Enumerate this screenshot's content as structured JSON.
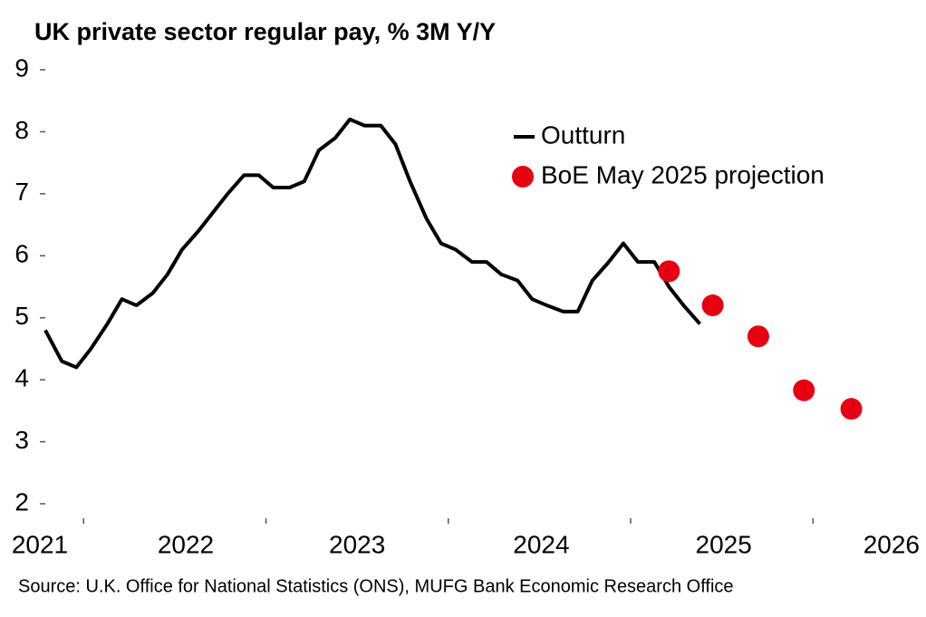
{
  "chart_data": {
    "type": "line",
    "title": "UK private sector regular pay, % 3M Y/Y",
    "source": "Source: U.K. Office for National Statistics (ONS), MUFG Bank Economic Research Office",
    "xlim": [
      2021.78,
      2026.56
    ],
    "xticks": [
      {
        "value": 2021.76,
        "label": "2021"
      },
      {
        "value": 2022.56,
        "label": "2022"
      },
      {
        "value": 2023.5,
        "label": "2023"
      },
      {
        "value": 2024.51,
        "label": "2024"
      },
      {
        "value": 2025.51,
        "label": "2025"
      },
      {
        "value": 2026.43,
        "label": "2026"
      }
    ],
    "xtick_marks": [
      2022,
      2023,
      2024,
      2025,
      2026
    ],
    "ylim": [
      2,
      9
    ],
    "yticks": [
      2,
      3,
      4,
      5,
      6,
      7,
      8,
      9
    ],
    "grid": false,
    "legend": "top-right",
    "series": [
      {
        "name": "Outturn",
        "type": "line",
        "color": "#000000",
        "x": [
          2021.79,
          2021.88,
          2021.96,
          2022.04,
          2022.13,
          2022.21,
          2022.29,
          2022.38,
          2022.46,
          2022.54,
          2022.63,
          2022.71,
          2022.79,
          2022.88,
          2022.96,
          2023.04,
          2023.13,
          2023.21,
          2023.29,
          2023.38,
          2023.46,
          2023.54,
          2023.63,
          2023.71,
          2023.79,
          2023.88,
          2023.96,
          2024.04,
          2024.13,
          2024.21,
          2024.29,
          2024.38,
          2024.46,
          2024.54,
          2024.63,
          2024.71,
          2024.79,
          2024.88,
          2024.96,
          2025.04,
          2025.13,
          2025.21,
          2025.29,
          2025.38
        ],
        "values": [
          4.8,
          4.3,
          4.2,
          4.5,
          4.9,
          5.3,
          5.2,
          5.4,
          5.7,
          6.1,
          6.4,
          6.7,
          7.0,
          7.3,
          7.3,
          7.1,
          7.1,
          7.2,
          7.7,
          7.9,
          8.2,
          8.1,
          8.1,
          7.8,
          7.2,
          6.6,
          6.2,
          6.1,
          5.9,
          5.9,
          5.7,
          5.6,
          5.3,
          5.2,
          5.1,
          5.1,
          5.6,
          5.9,
          6.2,
          5.9,
          5.9,
          5.5,
          5.2,
          4.9
        ]
      },
      {
        "name": "BoE May 2025 projection",
        "type": "scatter",
        "color": "#e60012",
        "x": [
          2025.21,
          2025.45,
          2025.7,
          2025.95,
          2026.21
        ],
        "values": [
          5.75,
          5.2,
          4.7,
          3.83,
          3.53
        ]
      }
    ]
  }
}
